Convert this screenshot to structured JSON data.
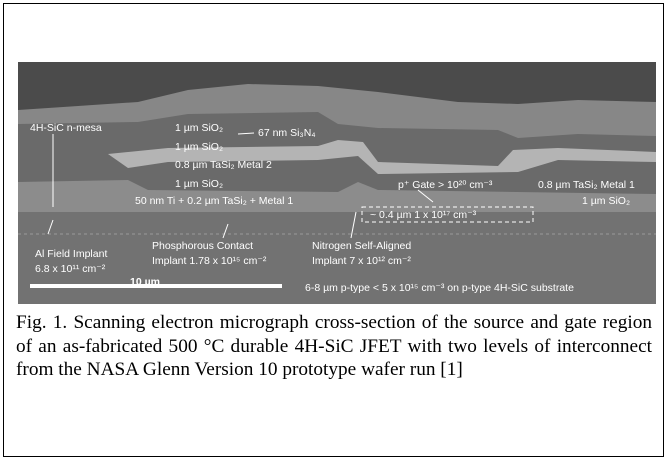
{
  "figure": {
    "labels": [
      "4H-SiC n-mesa",
      "1 µm SiO₂",
      "67 nm Si₃N₄",
      "1 µm SiO₂",
      "0.8 µm TaSi₂ Metal 2",
      "1 µm SiO₂",
      "50 nm Ti + 0.2 µm TaSi₂ + Metal 1",
      "p⁺ Gate > 10²⁰ cm⁻³",
      "0.8 µm TaSi₂ Metal 1",
      "1 µm SiO₂",
      "~ 0.4 µm 1 x 10¹⁷ cm⁻³",
      "Al Field Implant",
      "6.8 x 10¹¹ cm⁻²",
      "Phosphorous Contact",
      "Implant 1.78 x 10¹⁵ cm⁻²",
      "Nitrogen Self-Aligned",
      "Implant 7 x 10¹² cm⁻²",
      "6-8 µm p-type < 5 x 10¹⁵ cm⁻³ on p-type 4H-SiC substrate"
    ],
    "scale_bar": "10 µm"
  },
  "caption": "Fig. 1. Scanning electron micrograph cross-section of the source and gate region of an as-fabricated 500 °C durable 4H-SiC JFET with two levels of interconnect from the NASA Glenn Version 10 prototype wafer run [1]"
}
